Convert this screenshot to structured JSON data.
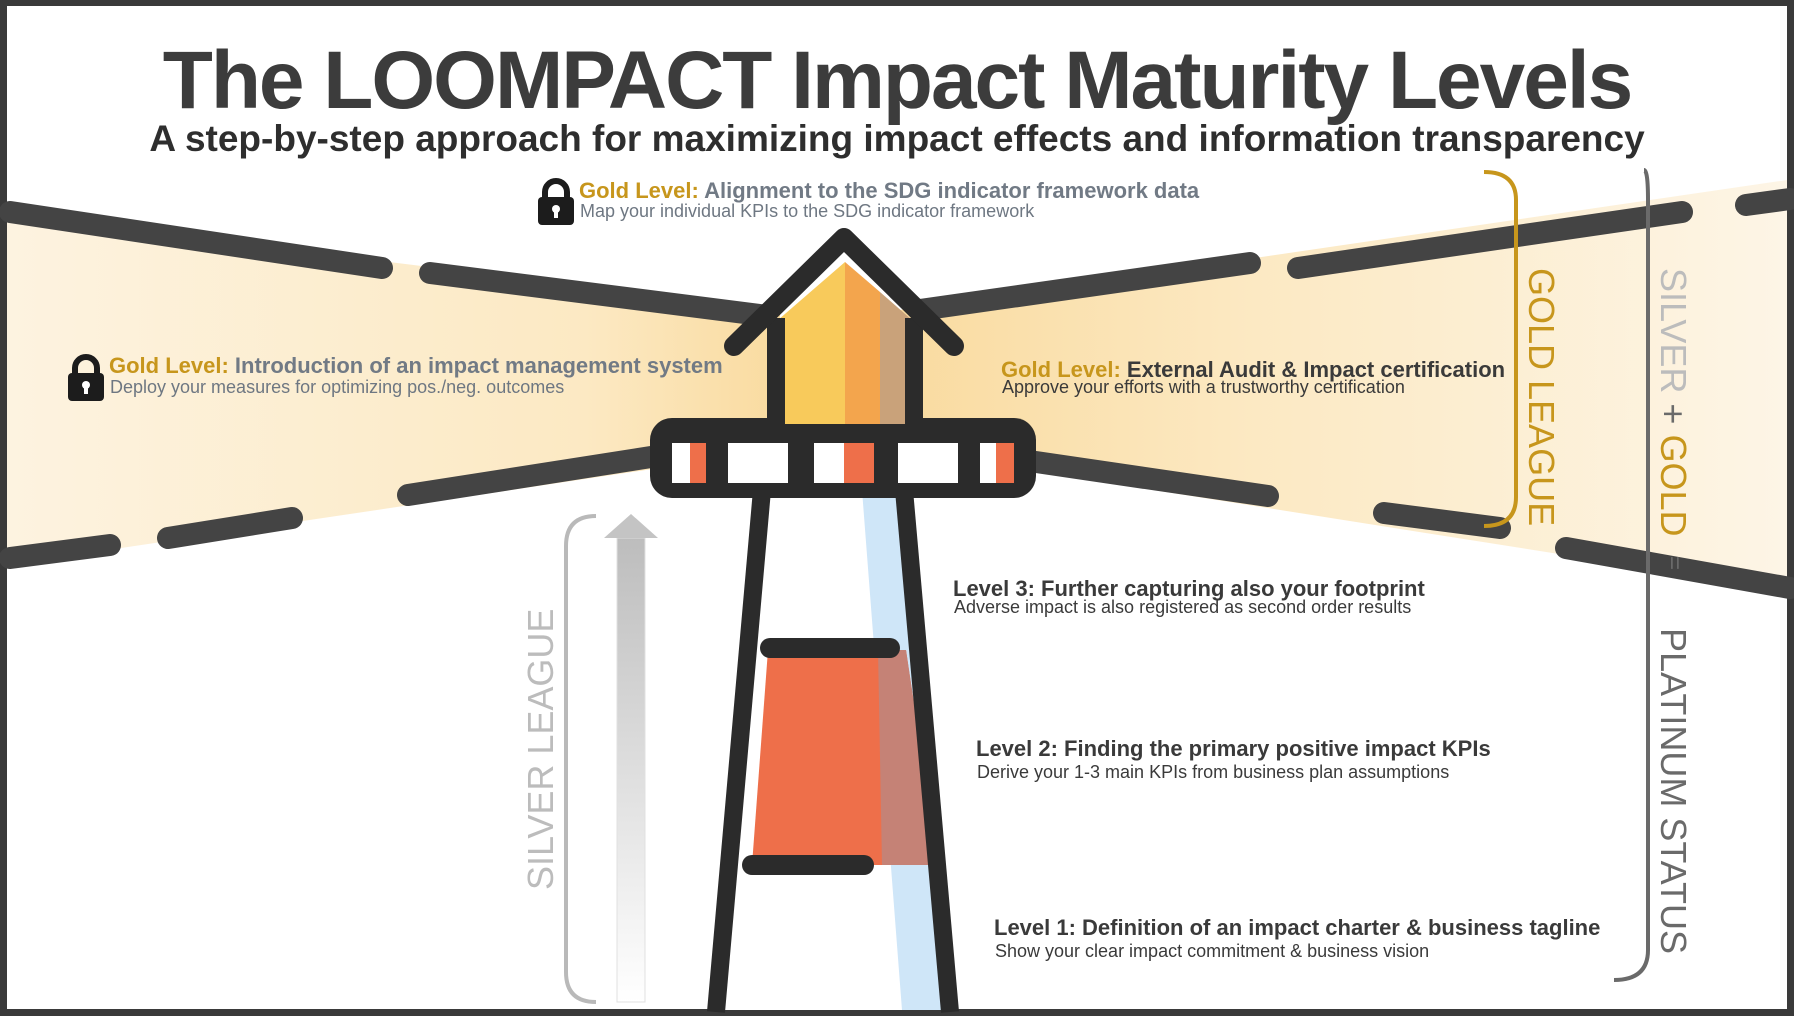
{
  "title": "The LOOMPACT Impact Maturity Levels",
  "subtitle": "A step-by-step approach for maximizing impact effects and information transparency",
  "levels": {
    "gold_top": {
      "prefix": "Gold Level:",
      "heading": "Alignment to the SDG indicator framework data",
      "description": "Map your individual KPIs to the SDG indicator framework",
      "locked": true
    },
    "gold_left": {
      "prefix": "Gold Level:",
      "heading": "Introduction of an impact management system",
      "description": "Deploy your measures for optimizing pos./neg. outcomes",
      "locked": true
    },
    "gold_right": {
      "prefix": "Gold Level:",
      "heading": "External Audit & Impact certification",
      "description": "Approve your efforts with a trustworthy certification",
      "locked": false
    },
    "level3": {
      "heading": "Level 3: Further capturing also your footprint",
      "description": "Adverse impact is also registered as second order results"
    },
    "level2": {
      "heading": "Level 2: Finding the primary positive impact KPIs",
      "description": "Derive your 1-3 main KPIs from business plan assumptions"
    },
    "level1": {
      "heading": "Level 1: Definition of an impact charter & business tagline",
      "description": "Show your clear impact commitment & business vision"
    }
  },
  "leagues": {
    "silver": "SILVER LEAGUE",
    "gold": "GOLD LEAGUE",
    "combo_silver": "SILVER",
    "combo_plus": "+",
    "combo_gold": "GOLD",
    "equals": "=",
    "platinum": "PLATINUM STATUS"
  },
  "icons": {
    "lock": "lock-icon",
    "arrow": "up-arrow-icon"
  },
  "colors": {
    "gold": "#c7961c",
    "outline": "#2b2b2b",
    "orange": "#ee6f4a",
    "light_blue": "#cfe6f8",
    "beam": "#fbe8c4",
    "silver": "#b9b9b9",
    "platinum": "#6a6a6a"
  }
}
